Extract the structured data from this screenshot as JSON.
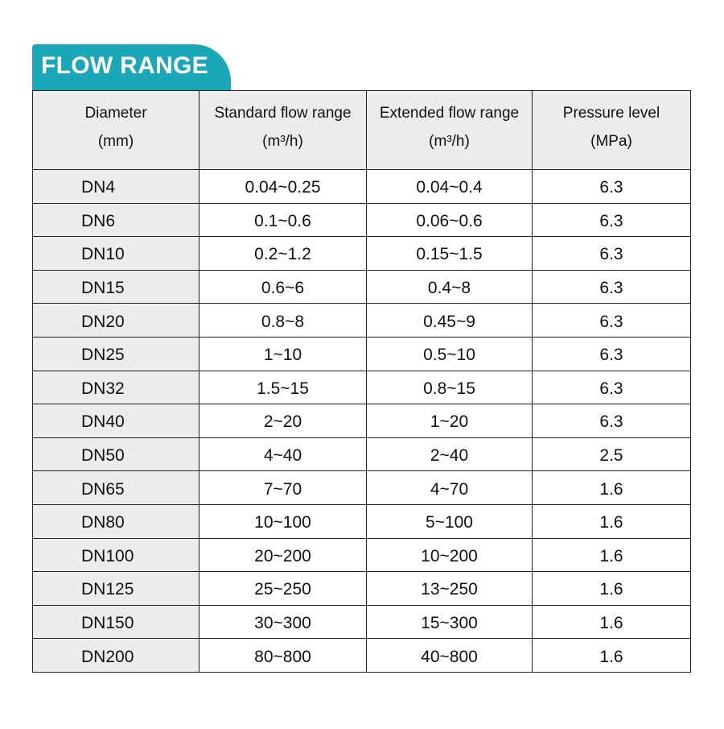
{
  "title": "FLOW RANGE",
  "accent_color": "#1aa8b8",
  "headers": [
    {
      "line1": "Diameter",
      "line2": "(mm)"
    },
    {
      "line1": "Standard flow range",
      "line2": "(m³/h)"
    },
    {
      "line1": "Extended flow range",
      "line2": "(m³/h)"
    },
    {
      "line1": "Pressure level",
      "line2": "(MPa)"
    }
  ],
  "rows": [
    [
      "DN4",
      "0.04~0.25",
      "0.04~0.4",
      "6.3"
    ],
    [
      "DN6",
      "0.1~0.6",
      "0.06~0.6",
      "6.3"
    ],
    [
      "DN10",
      "0.2~1.2",
      "0.15~1.5",
      "6.3"
    ],
    [
      "DN15",
      "0.6~6",
      "0.4~8",
      "6.3"
    ],
    [
      "DN20",
      "0.8~8",
      "0.45~9",
      "6.3"
    ],
    [
      "DN25",
      "1~10",
      "0.5~10",
      "6.3"
    ],
    [
      "DN32",
      "1.5~15",
      "0.8~15",
      "6.3"
    ],
    [
      "DN40",
      "2~20",
      "1~20",
      "6.3"
    ],
    [
      "DN50",
      "4~40",
      "2~40",
      "2.5"
    ],
    [
      "DN65",
      "7~70",
      "4~70",
      "1.6"
    ],
    [
      "DN80",
      "10~100",
      "5~100",
      "1.6"
    ],
    [
      "DN100",
      "20~200",
      "10~200",
      "1.6"
    ],
    [
      "DN125",
      "25~250",
      "13~250",
      "1.6"
    ],
    [
      "DN150",
      "30~300",
      "15~300",
      "1.6"
    ],
    [
      "DN200",
      "80~800",
      "40~800",
      "1.6"
    ]
  ]
}
